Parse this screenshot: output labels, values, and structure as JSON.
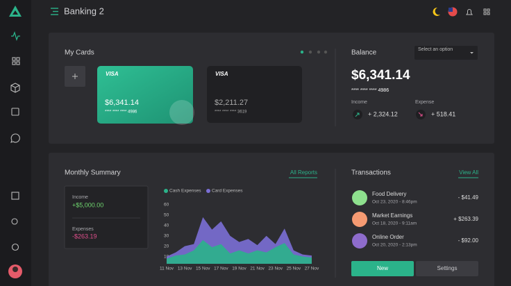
{
  "header": {
    "title": "Banking 2"
  },
  "my_cards": {
    "title": "My Cards",
    "cards": [
      {
        "brand": "VISA",
        "balance": "$6,341.14",
        "number": "**** **** **** 4986"
      },
      {
        "brand": "VISA",
        "balance": "$2,211.27",
        "number": "**** **** **** 3619"
      }
    ]
  },
  "balance": {
    "title": "Balance",
    "select": "Select an option",
    "amount": "$6,341.14",
    "number": "**** **** **** 4986",
    "income_label": "Income",
    "income": "+ 2,324.12",
    "expense_label": "Expense",
    "expense": "+ 518.41"
  },
  "monthly_summary": {
    "title": "Monthly Summary",
    "link": "All Reports",
    "income_label": "Income",
    "income": "+$5,000.00",
    "expenses_label": "Expenses",
    "expenses": "-$263.19",
    "chart": {
      "type": "area",
      "x": [
        "11 Nov",
        null,
        "13 Nov",
        null,
        "15 Nov",
        null,
        "17 Nov",
        null,
        "19 Nov",
        null,
        "21 Nov",
        null,
        "23 Nov",
        null,
        "25 Nov",
        null,
        "27 Nov"
      ],
      "series": [
        {
          "name": "Cash Expenses",
          "color": "#2bb38a",
          "values": [
            8,
            11,
            12,
            16,
            26,
            19,
            22,
            13,
            16,
            13,
            16,
            14,
            19,
            23,
            12,
            10,
            9
          ]
        },
        {
          "name": "Card Expenses",
          "color": "#7b6fd6",
          "values": [
            10,
            14,
            20,
            22,
            48,
            36,
            44,
            30,
            24,
            27,
            21,
            30,
            22,
            37,
            16,
            12,
            11
          ]
        }
      ],
      "ylim": [
        3,
        60
      ],
      "yticks": [
        10,
        20,
        30,
        40,
        50,
        60
      ]
    }
  },
  "transactions": {
    "title": "Transactions",
    "link": "View All",
    "items": [
      {
        "name": "Food Delivery",
        "date": "Oct 23, 2020 - 8:46pm",
        "amount": "- $41.49"
      },
      {
        "name": "Market Earnings",
        "date": "Oct 18, 2020 - 9:11am",
        "amount": "+ $263.39"
      },
      {
        "name": "Online Order",
        "date": "Oct 20, 2020 - 2:13pm",
        "amount": "- $92.00"
      }
    ],
    "buttons": [
      "New",
      "Settings"
    ]
  }
}
